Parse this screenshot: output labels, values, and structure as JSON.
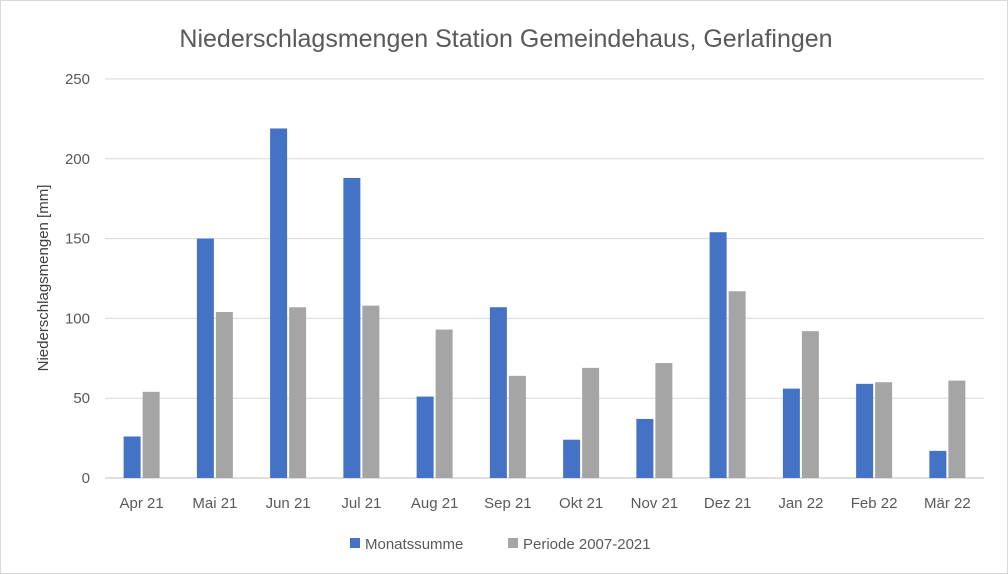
{
  "chart_data": {
    "type": "bar",
    "title": "Niederschlagsmengen Station Gemeindehaus, Gerlafingen",
    "xlabel": "",
    "ylabel": "Niederschlagsmengen [mm]",
    "ylim": [
      0,
      250
    ],
    "yticks": [
      0,
      50,
      100,
      150,
      200,
      250
    ],
    "grid": true,
    "legend": "bottom",
    "categories": [
      "Apr 21",
      "Mai 21",
      "Jun 21",
      "Jul 21",
      "Aug 21",
      "Sep 21",
      "Okt 21",
      "Nov 21",
      "Dez 21",
      "Jan 22",
      "Feb 22",
      "Mär 22"
    ],
    "series": [
      {
        "name": "Monatssumme",
        "color": "#4472c4",
        "values": [
          26,
          150,
          219,
          188,
          51,
          107,
          24,
          37,
          154,
          56,
          59,
          17
        ]
      },
      {
        "name": "Periode 2007-2021",
        "color": "#a5a5a5",
        "values": [
          54,
          104,
          107,
          108,
          93,
          64,
          69,
          72,
          117,
          92,
          60,
          61
        ]
      }
    ]
  }
}
